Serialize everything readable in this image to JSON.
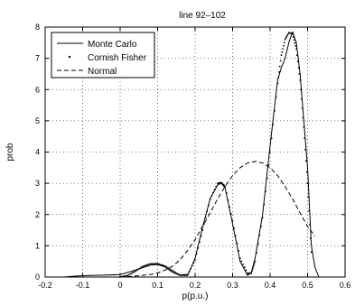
{
  "chart_data": {
    "type": "line",
    "title": "line 92–102",
    "xlabel": "p(p.u.)",
    "ylabel": "prob",
    "xlim": [
      -0.2,
      0.6
    ],
    "ylim": [
      0,
      8
    ],
    "xticks": [
      "-0.2",
      "-0.1",
      "0",
      "0.1",
      "0.2",
      "0.3",
      "0.4",
      "0.5",
      "0.6"
    ],
    "yticks": [
      "0",
      "1",
      "2",
      "3",
      "4",
      "5",
      "6",
      "7",
      "8"
    ],
    "grid": "dotted",
    "legend_position": "top-left",
    "series": [
      {
        "name": "Monte Carlo",
        "style": "solid",
        "x": [
          -0.15,
          -0.12,
          -0.08,
          -0.04,
          0.0,
          0.03,
          0.06,
          0.08,
          0.1,
          0.12,
          0.14,
          0.16,
          0.18,
          0.2,
          0.22,
          0.24,
          0.26,
          0.27,
          0.28,
          0.3,
          0.32,
          0.34,
          0.35,
          0.36,
          0.38,
          0.4,
          0.42,
          0.43,
          0.44,
          0.45,
          0.46,
          0.47,
          0.48,
          0.5,
          0.51,
          0.52,
          0.53
        ],
        "y": [
          0.0,
          0.03,
          0.05,
          0.06,
          0.08,
          0.18,
          0.3,
          0.38,
          0.4,
          0.32,
          0.15,
          0.05,
          0.05,
          0.6,
          1.6,
          2.5,
          2.95,
          3.0,
          2.85,
          1.7,
          0.5,
          0.05,
          0.15,
          0.6,
          2.0,
          4.2,
          6.3,
          6.7,
          7.0,
          7.5,
          7.85,
          7.5,
          6.5,
          3.5,
          1.0,
          0.3,
          0.0
        ]
      },
      {
        "name": "Cornish Fisher",
        "style": "dots",
        "x": [
          0.0,
          0.02,
          0.04,
          0.06,
          0.08,
          0.1,
          0.12,
          0.14,
          0.16,
          0.18,
          0.2,
          0.22,
          0.24,
          0.26,
          0.27,
          0.28,
          0.3,
          0.32,
          0.34,
          0.35,
          0.36,
          0.38,
          0.4,
          0.42,
          0.43,
          0.44,
          0.45,
          0.46,
          0.47,
          0.48,
          0.49,
          0.5,
          0.51
        ],
        "y": [
          0.0,
          0.05,
          0.18,
          0.34,
          0.42,
          0.43,
          0.35,
          0.2,
          0.06,
          0.08,
          0.55,
          1.5,
          2.5,
          3.0,
          3.02,
          2.9,
          1.8,
          0.6,
          0.12,
          0.12,
          0.5,
          1.9,
          4.0,
          6.2,
          7.1,
          7.6,
          7.82,
          7.78,
          7.3,
          6.3,
          4.8,
          3.0,
          0.8
        ]
      },
      {
        "name": "Normal",
        "style": "dashed",
        "x": [
          0.0,
          0.04,
          0.08,
          0.1,
          0.12,
          0.14,
          0.16,
          0.18,
          0.2,
          0.22,
          0.24,
          0.26,
          0.28,
          0.3,
          0.32,
          0.34,
          0.36,
          0.38,
          0.4,
          0.42,
          0.44,
          0.46,
          0.48,
          0.5,
          0.52
        ],
        "y": [
          0.0,
          0.03,
          0.08,
          0.13,
          0.22,
          0.35,
          0.55,
          0.85,
          1.2,
          1.62,
          2.05,
          2.5,
          2.9,
          3.25,
          3.5,
          3.65,
          3.7,
          3.65,
          3.5,
          3.25,
          2.9,
          2.5,
          2.05,
          1.62,
          1.3
        ]
      }
    ]
  }
}
